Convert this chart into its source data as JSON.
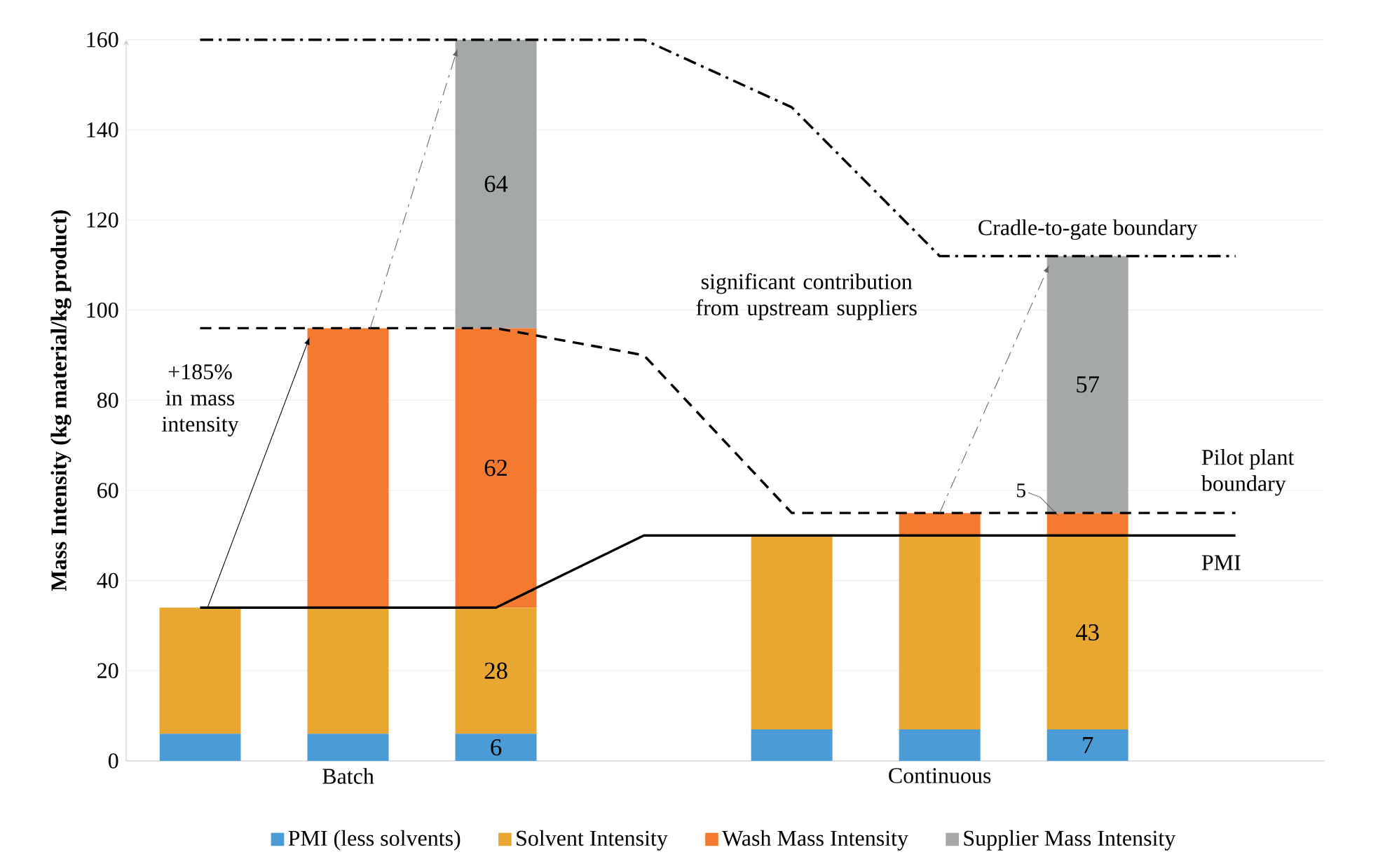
{
  "chart_data": {
    "type": "bar",
    "stacked": true,
    "ylabel": "Mass Intensity (kg material/kg product)",
    "categories": [
      null,
      "Batch",
      null,
      null,
      null,
      "Continuous",
      null,
      null
    ],
    "ylim": [
      0,
      160
    ],
    "yticks": [
      0,
      20,
      40,
      60,
      80,
      100,
      120,
      140,
      160
    ],
    "grid": "y",
    "legend": "bottom",
    "series": [
      {
        "name": "PMI (less solvents)",
        "color": "#4a9bd6",
        "values": [
          6,
          6,
          6,
          0,
          7,
          7,
          7,
          0
        ],
        "value_labels": [
          null,
          null,
          "6",
          null,
          null,
          null,
          "7",
          null
        ]
      },
      {
        "name": "Solvent Intensity",
        "color": "#e9a630",
        "values": [
          28,
          28,
          28,
          0,
          43,
          43,
          43,
          0
        ],
        "value_labels": [
          null,
          null,
          "28",
          null,
          null,
          null,
          "43",
          null
        ]
      },
      {
        "name": "Wash Mass Intensity",
        "color": "#f47a30",
        "values": [
          0,
          62,
          62,
          0,
          0,
          5,
          5,
          0
        ],
        "value_labels": [
          null,
          null,
          "62",
          null,
          null,
          null,
          "5",
          null
        ]
      },
      {
        "name": "Supplier Mass Intensity",
        "color": "#a5a8a8",
        "values": [
          0,
          0,
          64,
          0,
          0,
          0,
          57,
          0
        ],
        "value_labels": [
          null,
          null,
          "64",
          null,
          null,
          null,
          "57",
          null
        ]
      },
      {
        "type": "line",
        "name": "PMI",
        "color": "#000000",
        "line_style": "solid",
        "values": [
          34,
          34,
          34,
          50,
          50,
          50,
          50,
          50
        ]
      },
      {
        "type": "line",
        "name": "Pilot plant boundary",
        "color": "#000000",
        "line_style": "dashed",
        "values": [
          96,
          96,
          96,
          90,
          55,
          55,
          55,
          55
        ]
      },
      {
        "type": "line",
        "name": "Cradle-to-gate boundary",
        "color": "#000000",
        "line_style": "dashdot",
        "values": [
          160,
          160,
          160,
          160,
          145,
          112,
          112,
          112
        ]
      }
    ],
    "annotations": [
      "+185% in mass intensity",
      "significant contribution from upstream suppliers"
    ]
  }
}
